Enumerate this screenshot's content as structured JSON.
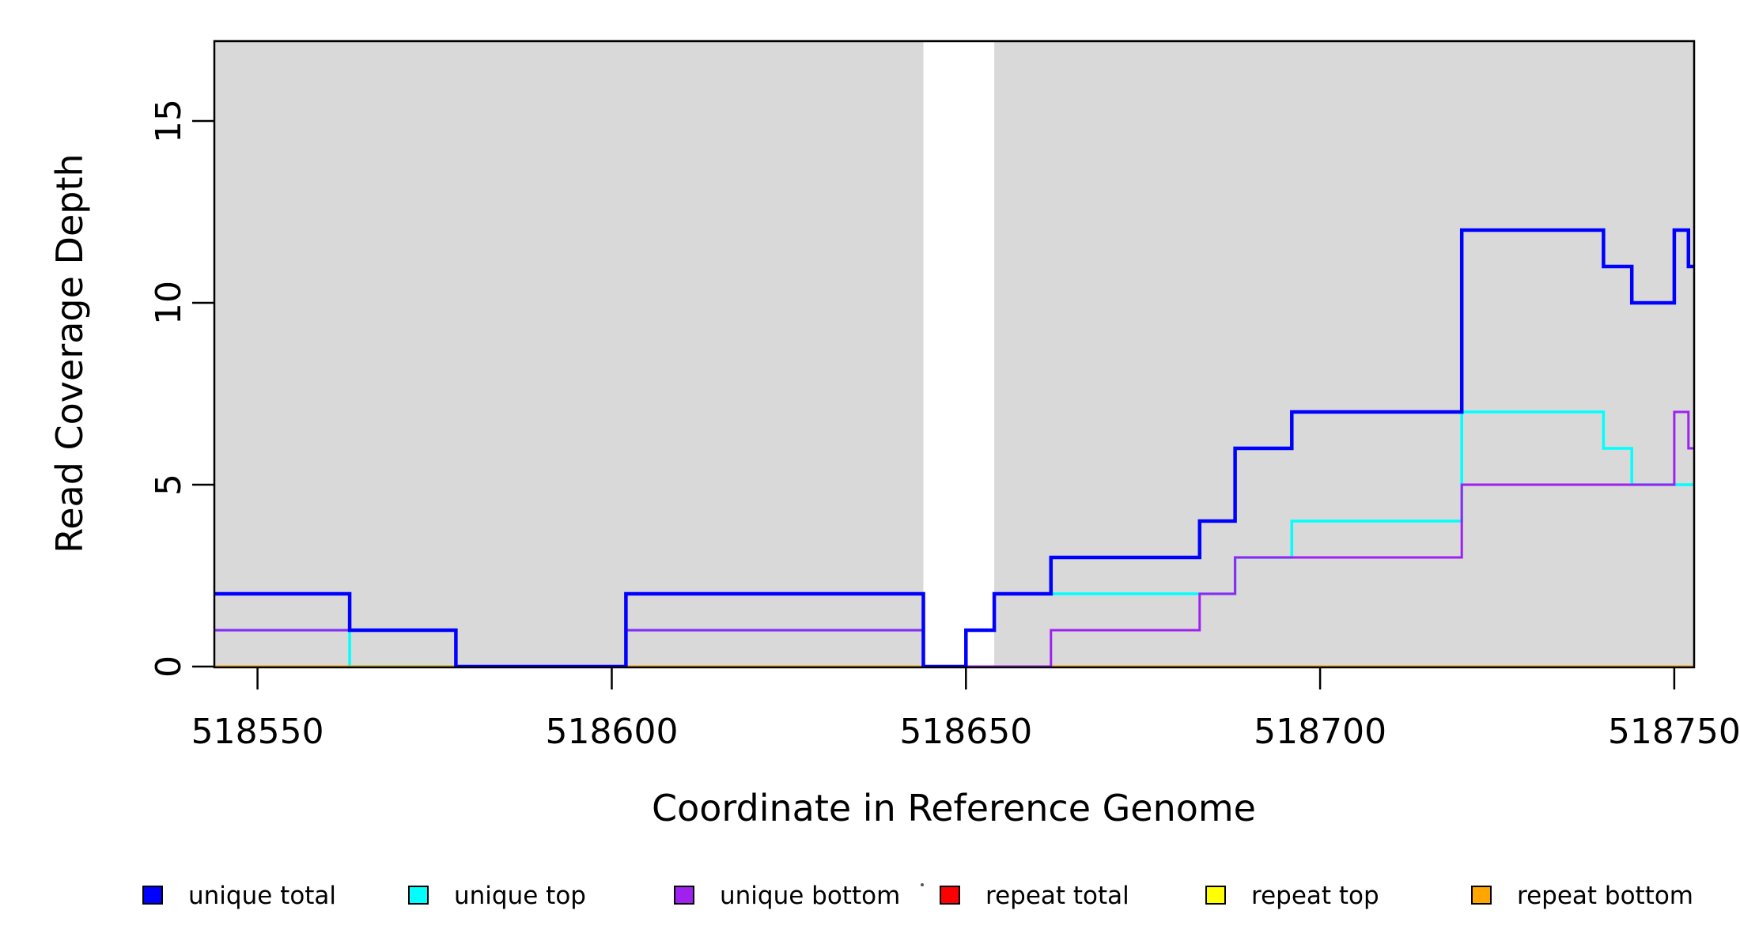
{
  "figure": {
    "background": "#FFFFFF",
    "plot_border_color": "#000000",
    "shaded_band_color": "#D9D9D9"
  },
  "chart_data": {
    "type": "line",
    "line_style": "step",
    "title": "",
    "xlabel": "Coordinate in Reference Genome",
    "ylabel": "Read Coverage Depth",
    "xlim": [
      518543.9,
      518752.8
    ],
    "ylim": [
      0,
      17.2
    ],
    "x_ticks": [
      518550,
      518600,
      518650,
      518700,
      518750
    ],
    "y_ticks": [
      0,
      5,
      10,
      15
    ],
    "grid": false,
    "legend_position": "bottom",
    "shaded_regions": [
      {
        "from": 518543.9,
        "to": 518644,
        "color": "#D9D9D9"
      },
      {
        "from": 518654,
        "to": 518752.8,
        "color": "#D9D9D9"
      }
    ],
    "draw_order": [
      "repeat total",
      "repeat top",
      "unique top",
      "repeat bottom",
      "unique bottom",
      "unique total"
    ],
    "series": [
      {
        "name": "unique total",
        "color": "#0000FF",
        "line_width": 4.5,
        "steps": [
          [
            518543.9,
            2
          ],
          [
            518563,
            1
          ],
          [
            518578,
            0
          ],
          [
            518602,
            2
          ],
          [
            518644,
            0
          ],
          [
            518650,
            1
          ],
          [
            518654,
            2
          ],
          [
            518662,
            3
          ],
          [
            518683,
            4
          ],
          [
            518688,
            6
          ],
          [
            518696,
            7
          ],
          [
            518720,
            12
          ],
          [
            518740,
            11
          ],
          [
            518744,
            10
          ],
          [
            518750,
            12
          ],
          [
            518752,
            11
          ]
        ]
      },
      {
        "name": "unique top",
        "color": "#00FFFF",
        "line_width": 3.5,
        "steps": [
          [
            518543.9,
            1
          ],
          [
            518563,
            0
          ],
          [
            518602,
            1
          ],
          [
            518644,
            0
          ],
          [
            518650,
            1
          ],
          [
            518654,
            2
          ],
          [
            518688,
            3
          ],
          [
            518696,
            4
          ],
          [
            518720,
            7
          ],
          [
            518740,
            6
          ],
          [
            518744,
            5
          ]
        ]
      },
      {
        "name": "unique bottom",
        "color": "#A020F0",
        "line_width": 3,
        "steps": [
          [
            518543.9,
            1
          ],
          [
            518578,
            0
          ],
          [
            518602,
            1
          ],
          [
            518644,
            0
          ],
          [
            518662,
            1
          ],
          [
            518683,
            2
          ],
          [
            518688,
            3
          ],
          [
            518720,
            5
          ],
          [
            518750,
            7
          ],
          [
            518752,
            6
          ]
        ]
      },
      {
        "name": "repeat total",
        "color": "#FF0000",
        "line_width": 3,
        "steps": [
          [
            518543.9,
            0
          ]
        ]
      },
      {
        "name": "repeat top",
        "color": "#FFFF00",
        "line_width": 3,
        "steps": [
          [
            518543.9,
            0
          ]
        ]
      },
      {
        "name": "repeat bottom",
        "color": "#FFA500",
        "line_width": 3,
        "steps": [
          [
            518543.9,
            0
          ]
        ]
      }
    ],
    "legend": [
      {
        "label": "unique total",
        "color": "#0000FF"
      },
      {
        "label": "unique top",
        "color": "#00FFFF"
      },
      {
        "label": "unique bottom",
        "color": "#A020F0"
      },
      {
        "label": "repeat total",
        "color": "#FF0000"
      },
      {
        "label": "repeat top",
        "color": "#FFFF00"
      },
      {
        "label": "repeat bottom",
        "color": "#FFA500"
      }
    ]
  }
}
